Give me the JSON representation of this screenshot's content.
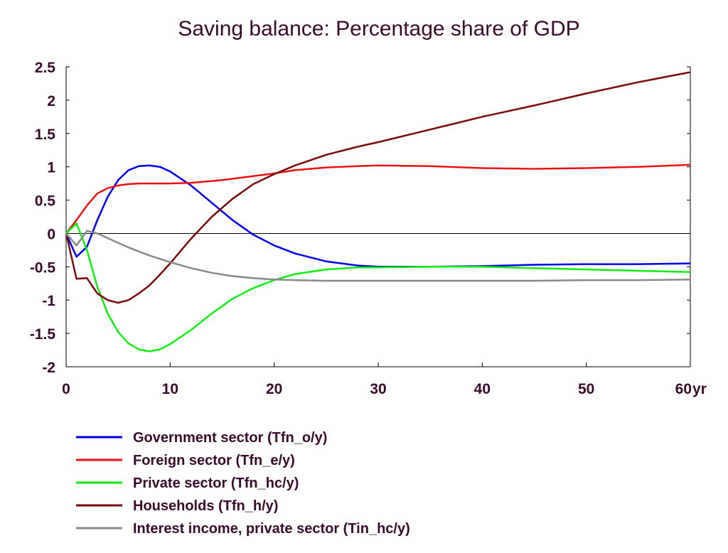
{
  "chart_data": {
    "type": "line",
    "title": "Saving balance: Percentage share of GDP",
    "x_unit_label": "yr",
    "xlim": [
      0,
      60
    ],
    "ylim": [
      -2,
      2.5
    ],
    "xticks": [
      0,
      10,
      20,
      30,
      40,
      50,
      60
    ],
    "xtick_labels": [
      "0",
      "10",
      "20",
      "30",
      "40",
      "50",
      "60"
    ],
    "yticks": [
      2.5,
      2,
      1.5,
      1,
      0.5,
      0,
      -0.5,
      -1,
      -1.5,
      -2
    ],
    "ytick_labels": [
      "2.5",
      "2",
      "1.5",
      "1",
      "0.5",
      "0",
      "-0.5",
      "-1",
      "-1.5",
      "-2"
    ],
    "grid": false,
    "zero_line": true,
    "legend_position": "bottom",
    "series": [
      {
        "name": "Government sector (Tfn_o/y)",
        "color": "#0000ee",
        "x": [
          0,
          1,
          2,
          3,
          4,
          5,
          6,
          7,
          8,
          9,
          10,
          12,
          14,
          16,
          18,
          20,
          22,
          25,
          28,
          30,
          35,
          40,
          45,
          50,
          55,
          60
        ],
        "y": [
          0,
          -0.35,
          -0.2,
          0.2,
          0.55,
          0.8,
          0.95,
          1.01,
          1.02,
          1.0,
          0.93,
          0.72,
          0.46,
          0.2,
          -0.02,
          -0.18,
          -0.3,
          -0.42,
          -0.48,
          -0.5,
          -0.5,
          -0.49,
          -0.47,
          -0.46,
          -0.46,
          -0.45
        ]
      },
      {
        "name": "Foreign sector (Tfn_e/y)",
        "color": "#ee1111",
        "x": [
          0,
          1,
          2,
          3,
          4,
          5,
          6,
          7,
          8,
          10,
          12,
          15,
          18,
          20,
          22,
          25,
          28,
          30,
          35,
          40,
          45,
          50,
          55,
          60
        ],
        "y": [
          0,
          0.2,
          0.42,
          0.6,
          0.68,
          0.72,
          0.74,
          0.75,
          0.75,
          0.75,
          0.76,
          0.8,
          0.86,
          0.9,
          0.95,
          0.99,
          1.01,
          1.02,
          1.01,
          0.98,
          0.97,
          0.98,
          1.0,
          1.03
        ]
      },
      {
        "name": "Private sector (Tfn_hc/y)",
        "color": "#11ee11",
        "x": [
          0,
          1,
          2,
          3,
          4,
          5,
          6,
          7,
          8,
          9,
          10,
          12,
          14,
          16,
          18,
          20,
          22,
          25,
          28,
          30,
          35,
          40,
          45,
          50,
          55,
          60
        ],
        "y": [
          0,
          0.15,
          -0.25,
          -0.8,
          -1.2,
          -1.48,
          -1.65,
          -1.74,
          -1.77,
          -1.74,
          -1.66,
          -1.45,
          -1.2,
          -0.98,
          -0.82,
          -0.7,
          -0.61,
          -0.54,
          -0.51,
          -0.51,
          -0.5,
          -0.5,
          -0.52,
          -0.54,
          -0.56,
          -0.58
        ]
      },
      {
        "name": "Households (Tfn_h/y)",
        "color": "#7a0a0a",
        "x": [
          0,
          1,
          2,
          3,
          4,
          5,
          6,
          7,
          8,
          9,
          10,
          12,
          14,
          16,
          18,
          20,
          22,
          25,
          28,
          30,
          35,
          40,
          45,
          50,
          55,
          60
        ],
        "y": [
          0,
          -0.68,
          -0.67,
          -0.9,
          -1.0,
          -1.04,
          -1.0,
          -0.9,
          -0.78,
          -0.62,
          -0.45,
          -0.08,
          0.25,
          0.52,
          0.74,
          0.89,
          1.02,
          1.18,
          1.3,
          1.37,
          1.56,
          1.75,
          1.92,
          2.1,
          2.27,
          2.42
        ]
      },
      {
        "name": "Interest income, private sector (Tin_hc/y)",
        "color": "#888888",
        "x": [
          0,
          1,
          2,
          3,
          4,
          5,
          6,
          7,
          8,
          10,
          12,
          14,
          16,
          18,
          20,
          22,
          25,
          30,
          35,
          40,
          45,
          50,
          55,
          60
        ],
        "y": [
          0,
          -0.18,
          0.04,
          0.0,
          -0.07,
          -0.14,
          -0.21,
          -0.27,
          -0.33,
          -0.43,
          -0.52,
          -0.59,
          -0.64,
          -0.67,
          -0.69,
          -0.7,
          -0.71,
          -0.71,
          -0.71,
          -0.71,
          -0.71,
          -0.7,
          -0.7,
          -0.69
        ]
      }
    ]
  }
}
